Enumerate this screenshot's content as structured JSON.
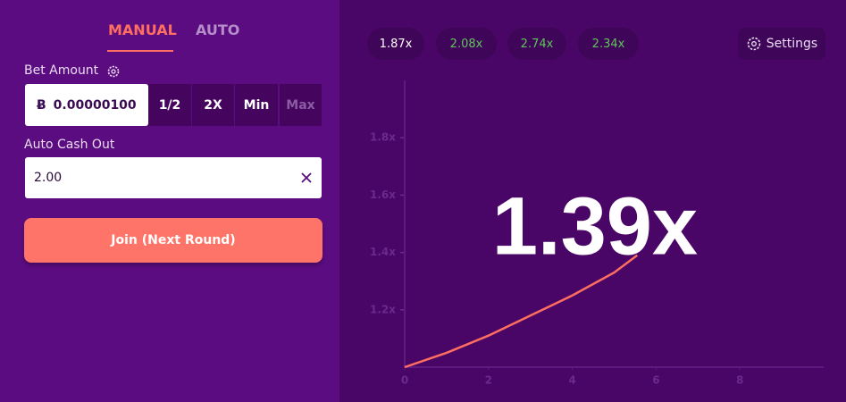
{
  "tabs": [
    "MANUAL",
    "AUTO"
  ],
  "bet_amount": {
    "label": "Bet Amount",
    "currency": "Ƀ",
    "value": "0.00000100",
    "buttons": [
      "1/2",
      "2X",
      "Min",
      "Max"
    ]
  },
  "auto_cash_out": {
    "label": "Auto Cash Out",
    "value": "2.00"
  },
  "join_button": "Join (Next Round)",
  "history": [
    "1.87x",
    "2.08x",
    "2.74x",
    "2.34x"
  ],
  "settings": "Settings",
  "multiplier": "1.39x",
  "chart_data": {
    "type": "line",
    "x": [
      0,
      1,
      2,
      3,
      4,
      5,
      5.55
    ],
    "values": [
      1.0,
      1.05,
      1.11,
      1.18,
      1.25,
      1.33,
      1.39
    ],
    "color": "#ff6f61",
    "xlim": [
      0,
      10
    ],
    "ylim": [
      1,
      2
    ],
    "xticks": [
      0,
      2,
      4,
      6,
      8
    ],
    "yticks": [
      {
        "value": 1.2,
        "label": "1.2x"
      },
      {
        "value": 1.4,
        "label": "1.4x"
      },
      {
        "value": 1.6,
        "label": "1.6x"
      },
      {
        "value": 1.8,
        "label": "1.8x"
      }
    ]
  }
}
